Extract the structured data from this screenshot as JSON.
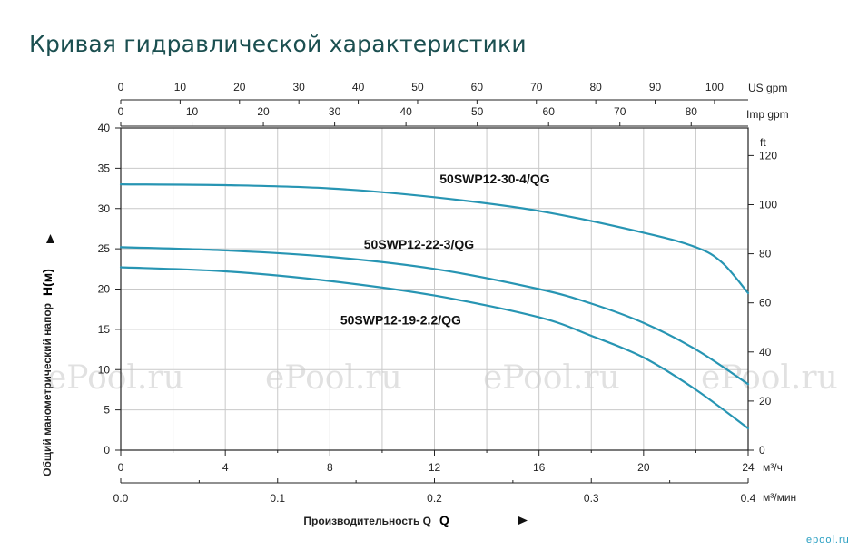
{
  "page": {
    "title": "Кривая гидравлической характеристики",
    "brand": "epool.ru"
  },
  "watermarks": [
    "ePool.ru",
    "ePool.ru",
    "ePool.ru",
    "ePool.ru"
  ],
  "chart_data": {
    "type": "line",
    "colors": {
      "curve": "#2795b3",
      "grid": "#c9c9c9",
      "axis": "#222222"
    },
    "grid": true,
    "x_axis": {
      "label": "Производительность Q",
      "unit": "м³/ч",
      "range": [
        0,
        24
      ],
      "ticks": [
        0,
        4,
        8,
        12,
        16,
        20,
        24
      ],
      "tick_labels": [
        "0",
        "4",
        "8",
        "12",
        "16",
        "20",
        "24"
      ]
    },
    "x_axis_secondary": {
      "unit": "м³/мин",
      "range": [
        0,
        0.4
      ],
      "ticks": [
        0,
        0.1,
        0.2,
        0.3,
        0.4
      ],
      "tick_labels": [
        "0.0",
        "0.1",
        "0.2",
        "0.3",
        "0.4"
      ]
    },
    "x_axis_top_us": {
      "unit": "US gpm",
      "ticks": [
        0,
        10,
        20,
        30,
        40,
        50,
        60,
        70,
        80,
        90,
        100
      ],
      "tick_labels": [
        "0",
        "10",
        "20",
        "30",
        "40",
        "50",
        "60",
        "70",
        "80",
        "90",
        "100"
      ]
    },
    "x_axis_top_imp": {
      "unit": "Imp gpm",
      "ticks": [
        0,
        10,
        20,
        30,
        40,
        50,
        60,
        70,
        80
      ],
      "tick_labels": [
        "0",
        "10",
        "20",
        "30",
        "40",
        "50",
        "60",
        "70",
        "80"
      ]
    },
    "y_axis": {
      "label": "Общий манометрический напор",
      "label_symbol": "H(м)",
      "range": [
        0,
        40
      ],
      "ticks": [
        0,
        5,
        10,
        15,
        20,
        25,
        30,
        35,
        40
      ],
      "tick_labels": [
        "0",
        "5",
        "10",
        "15",
        "20",
        "25",
        "30",
        "35",
        "40"
      ]
    },
    "y_axis_secondary": {
      "unit": "ft",
      "ticks": [
        0,
        20,
        40,
        60,
        80,
        100,
        120
      ],
      "tick_labels": [
        "0",
        "20",
        "40",
        "60",
        "80",
        "100",
        "120"
      ]
    },
    "series": [
      {
        "name": "50SWP12-30-4/QG",
        "label_at": [
          12.2,
          33.1
        ],
        "points": [
          [
            0,
            33.0
          ],
          [
            4,
            32.9
          ],
          [
            8,
            32.5
          ],
          [
            12,
            31.4
          ],
          [
            16,
            29.7
          ],
          [
            20,
            27.0
          ],
          [
            22,
            25.2
          ],
          [
            23,
            23.3
          ],
          [
            24,
            19.5
          ]
        ]
      },
      {
        "name": "50SWP12-22-3/QG",
        "label_at": [
          9.3,
          25.0
        ],
        "points": [
          [
            0,
            25.2
          ],
          [
            4,
            24.8
          ],
          [
            8,
            24.0
          ],
          [
            12,
            22.5
          ],
          [
            16,
            20.0
          ],
          [
            18,
            18.2
          ],
          [
            20,
            15.8
          ],
          [
            22,
            12.5
          ],
          [
            24,
            8.2
          ]
        ]
      },
      {
        "name": "50SWP12-19-2.2/QG",
        "label_at": [
          8.4,
          15.6
        ],
        "points": [
          [
            0,
            22.7
          ],
          [
            4,
            22.2
          ],
          [
            8,
            21.0
          ],
          [
            12,
            19.2
          ],
          [
            16,
            16.5
          ],
          [
            18,
            14.2
          ],
          [
            20,
            11.5
          ],
          [
            22,
            7.5
          ],
          [
            24,
            2.7
          ]
        ]
      }
    ]
  }
}
